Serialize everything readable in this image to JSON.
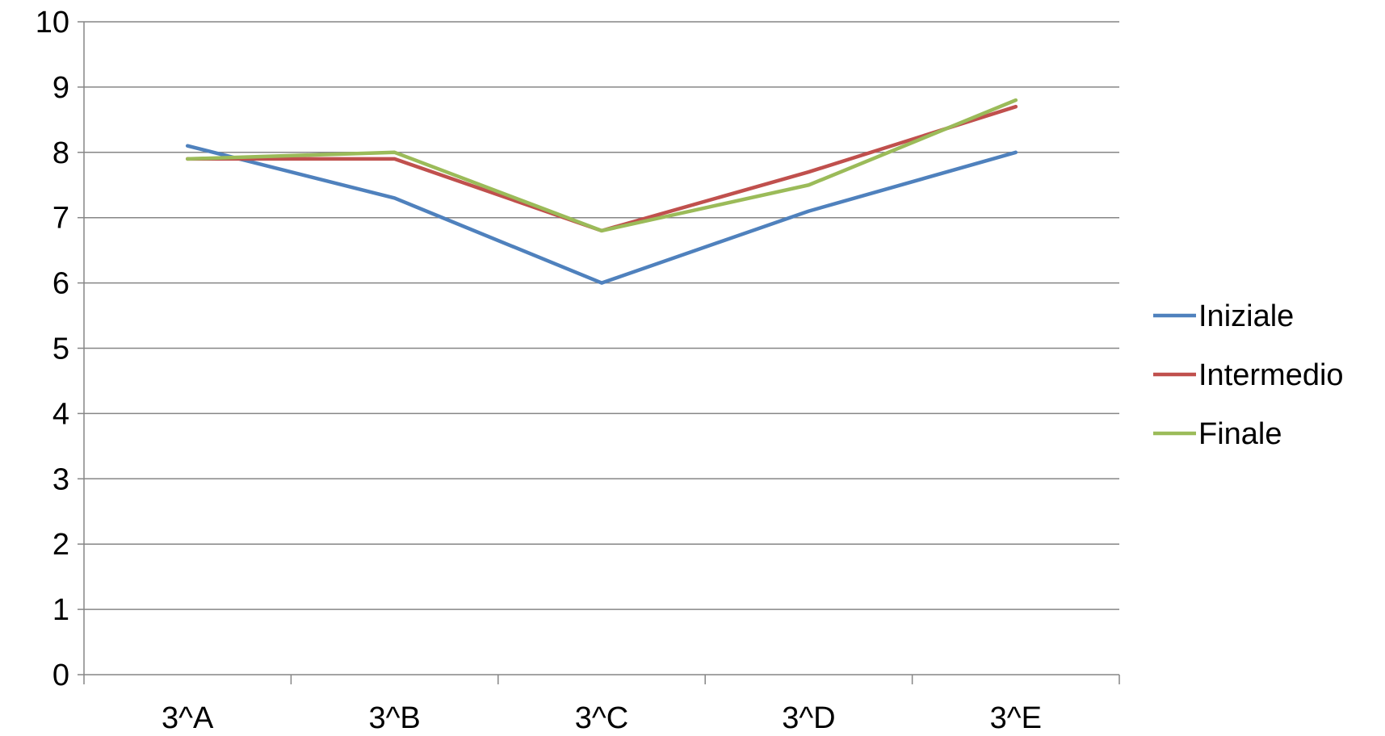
{
  "chart_data": {
    "type": "line",
    "categories": [
      "3^A",
      "3^B",
      "3^C",
      "3^D",
      "3^E"
    ],
    "series": [
      {
        "name": "Iniziale",
        "color": "#4F81BD",
        "values": [
          8.1,
          7.3,
          6.0,
          7.1,
          8.0
        ]
      },
      {
        "name": "Intermedio",
        "color": "#C0504D",
        "values": [
          7.9,
          7.9,
          6.8,
          7.7,
          8.7
        ]
      },
      {
        "name": "Finale",
        "color": "#9BBB59",
        "values": [
          7.9,
          8.0,
          6.8,
          7.5,
          8.8
        ]
      }
    ],
    "ylim": [
      0,
      10
    ],
    "yticks": [
      0,
      1,
      2,
      3,
      4,
      5,
      6,
      7,
      8,
      9,
      10
    ],
    "grid": true,
    "legend_position": "right"
  }
}
